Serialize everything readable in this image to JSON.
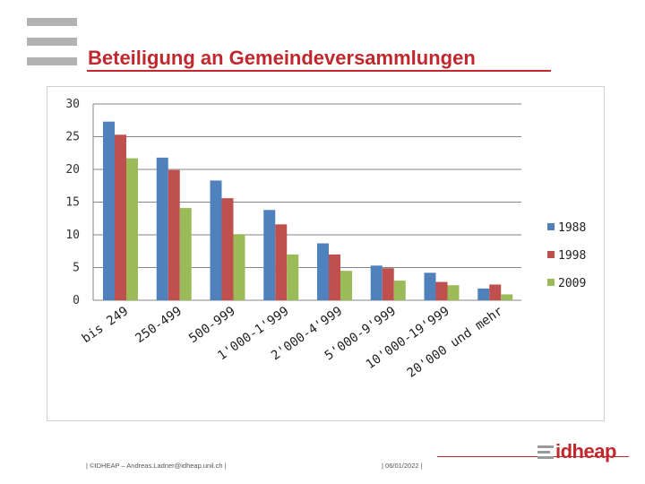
{
  "slide": {
    "title": "Beteiligung an Gemeindeversammlungen"
  },
  "footer": {
    "credit": "| ©IDHEAP – Andreas.Ladner@idheap.unil.ch |",
    "date": "| 06/01/2022 |",
    "logo_text": "idheap"
  },
  "colors": {
    "accent": "#c0282d",
    "series": [
      "#4f81bd",
      "#c0504d",
      "#9bbb59"
    ]
  },
  "chart_data": {
    "type": "bar",
    "title": "",
    "xlabel": "",
    "ylabel": "",
    "ylim": [
      0,
      30
    ],
    "yticks": [
      0,
      5,
      10,
      15,
      20,
      25,
      30
    ],
    "grid": true,
    "legend_position": "right",
    "categories": [
      "bis 249",
      "250-499",
      "500-999",
      "1'000-1'999",
      "2'000-4'999",
      "5'000-9'999",
      "10'000-19'999",
      "20'000 und mehr"
    ],
    "series": [
      {
        "name": "1988",
        "values": [
          27.3,
          21.8,
          18.3,
          13.8,
          8.7,
          5.3,
          4.2,
          1.8
        ]
      },
      {
        "name": "1998",
        "values": [
          25.3,
          19.9,
          15.6,
          11.6,
          7.0,
          4.9,
          2.8,
          2.4
        ]
      },
      {
        "name": "2009",
        "values": [
          21.7,
          14.1,
          10.1,
          7.0,
          4.5,
          3.0,
          2.3,
          0.9
        ]
      }
    ]
  }
}
